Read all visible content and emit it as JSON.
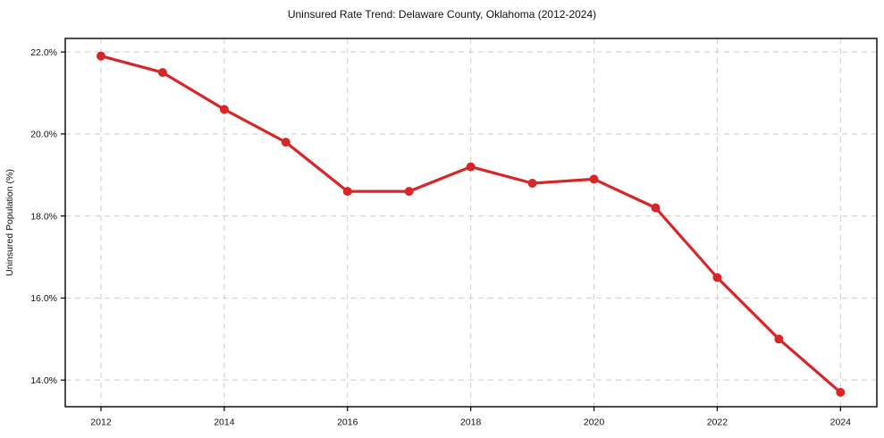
{
  "chart_data": {
    "type": "line",
    "title": "Uninsured Rate Trend: Delaware County, Oklahoma (2012-2024)",
    "xlabel": "",
    "ylabel": "Uninsured Population (%)",
    "x": [
      2012,
      2013,
      2014,
      2015,
      2016,
      2017,
      2018,
      2019,
      2020,
      2021,
      2022,
      2023,
      2024
    ],
    "series": [
      {
        "name": "Uninsured rate",
        "values": [
          21.9,
          21.5,
          20.6,
          19.8,
          18.6,
          18.6,
          19.2,
          18.8,
          18.9,
          18.2,
          16.5,
          15.0,
          13.7
        ],
        "color": "#d62728",
        "marker": "circle"
      }
    ],
    "x_ticks": [
      2012,
      2014,
      2016,
      2018,
      2020,
      2022,
      2024
    ],
    "x_tick_labels": [
      "2012",
      "2014",
      "2016",
      "2018",
      "2020",
      "2022",
      "2024"
    ],
    "y_ticks": [
      14.0,
      16.0,
      18.0,
      20.0,
      22.0
    ],
    "y_tick_labels": [
      "14.0%",
      "16.0%",
      "18.0%",
      "20.0%",
      "22.0%"
    ],
    "xlim": [
      2011.42,
      2024.59
    ],
    "ylim": [
      13.35,
      22.33
    ],
    "grid": true,
    "grid_color": "#cdcdcd",
    "grid_style": "dashed",
    "legend": "none",
    "line_width": 3.2,
    "marker_size": 5,
    "axis_color": "#000000",
    "text_color": "#111111",
    "background": "#ffffff"
  }
}
